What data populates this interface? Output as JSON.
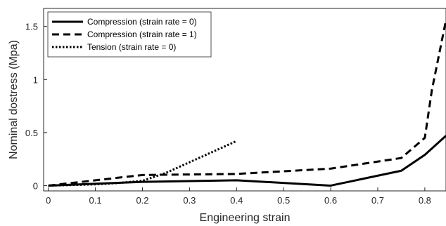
{
  "chart_data": {
    "type": "line",
    "title": "",
    "xlabel": "Engineering strain",
    "ylabel": "Nominal dostress (Mpa)",
    "xlim": [
      -0.01,
      0.845
    ],
    "ylim": [
      -0.05,
      1.67
    ],
    "xticks": [
      0,
      0.1,
      0.2,
      0.3,
      0.4,
      0.5,
      0.6,
      0.7,
      0.8
    ],
    "xtick_labels": [
      "0",
      "0.1",
      "0.2",
      "0.3",
      "0.4",
      "0.5",
      "0.6",
      "0.7",
      "0.8"
    ],
    "yticks": [
      0,
      0.5,
      1,
      1.5
    ],
    "ytick_labels": [
      "0",
      "0.5",
      "1",
      "1.5"
    ],
    "grid": false,
    "legend_position": "top-left",
    "series": [
      {
        "name": "Compression (strain rate = 0)",
        "style": "solid",
        "color": "#000000",
        "x": [
          0,
          0.2,
          0.4,
          0.6,
          0.75,
          0.8,
          0.845
        ],
        "y": [
          0,
          0.035,
          0.05,
          0.0,
          0.14,
          0.29,
          0.47
        ]
      },
      {
        "name": "Compression (strain rate = 1)",
        "style": "dashed",
        "color": "#000000",
        "x": [
          0,
          0.2,
          0.4,
          0.6,
          0.75,
          0.8,
          0.815,
          0.845
        ],
        "y": [
          0,
          0.1,
          0.11,
          0.16,
          0.26,
          0.45,
          0.9,
          1.56
        ]
      },
      {
        "name": "Tension (strain rate = 0)",
        "style": "dotted",
        "color": "#000000",
        "x": [
          0,
          0.05,
          0.1,
          0.15,
          0.2,
          0.25,
          0.3,
          0.35,
          0.4
        ],
        "y": [
          0,
          0.005,
          0.012,
          0.025,
          0.045,
          0.12,
          0.22,
          0.32,
          0.42
        ]
      }
    ]
  }
}
